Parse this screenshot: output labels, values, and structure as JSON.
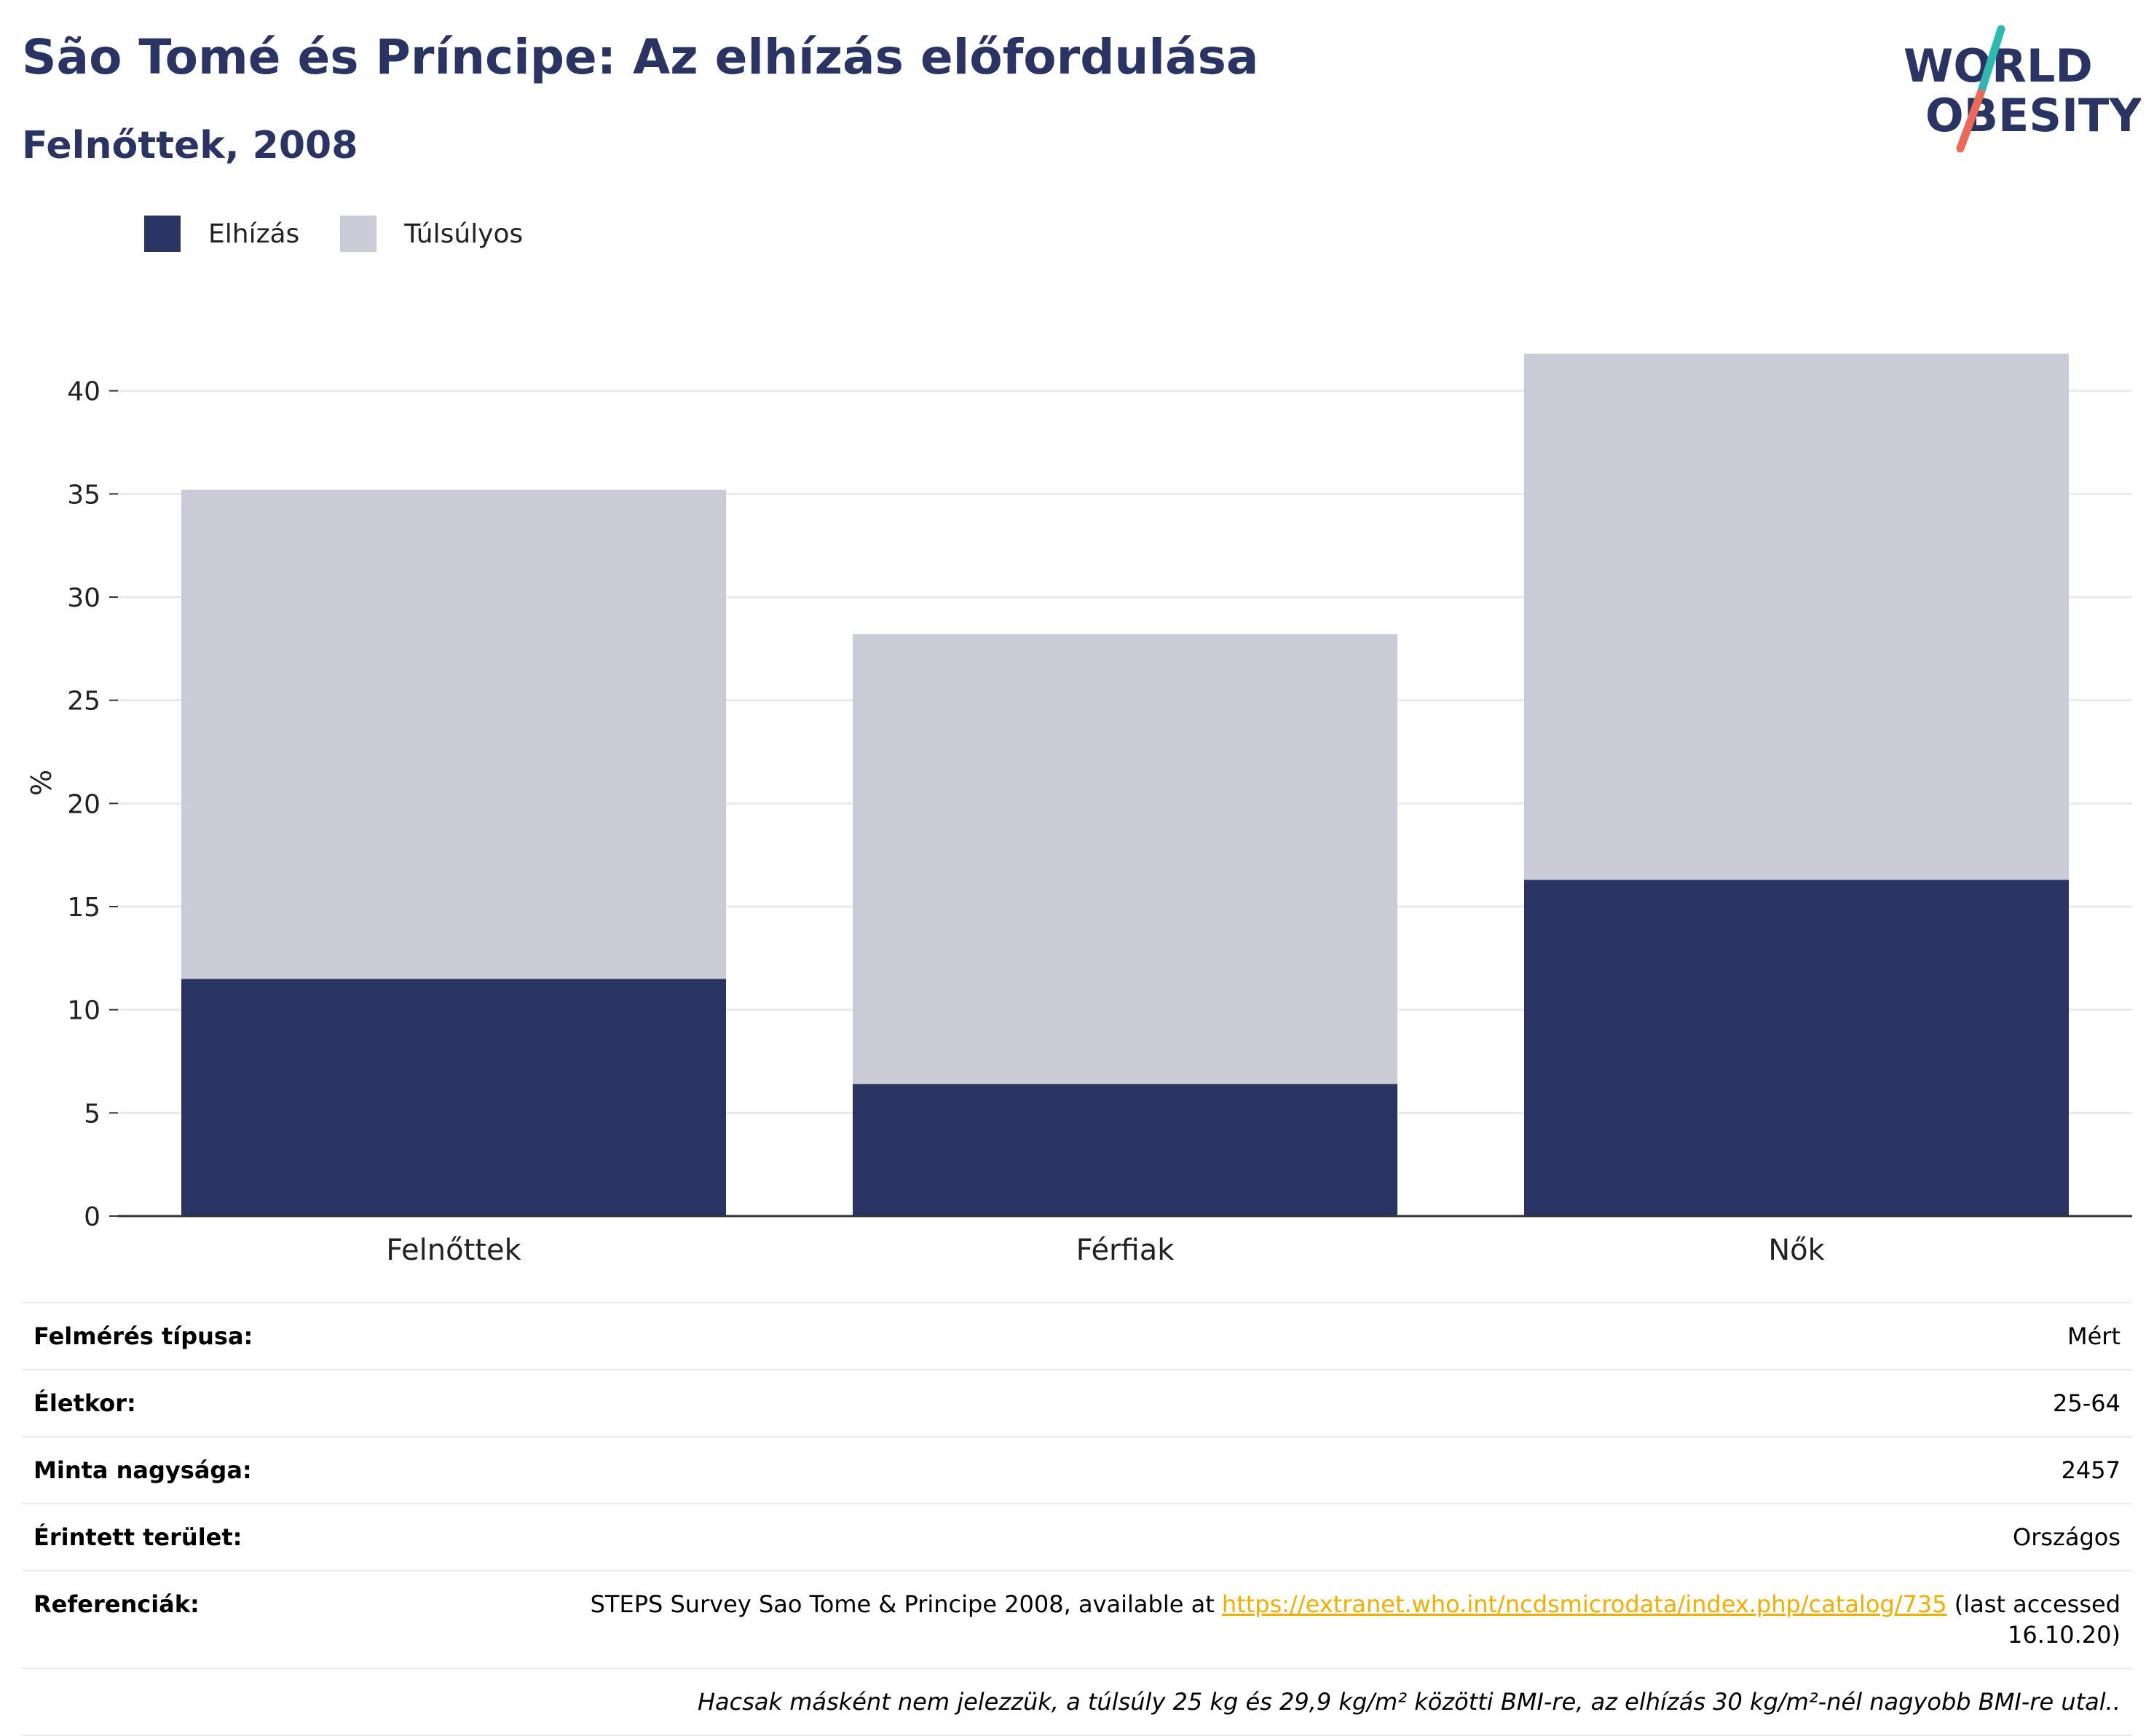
{
  "header": {
    "title": "São Tomé és Príncipe: Az elhízás előfordulása",
    "subtitle": "Felnőttek, 2008"
  },
  "logo": {
    "line1": "WORLD",
    "line2": "OBESITY",
    "icon": "world-obesity-slash-logo",
    "colors": {
      "text": "#293462",
      "slash_top": "#2fb7b0",
      "slash_bottom": "#e96a59"
    }
  },
  "chart_data": {
    "type": "bar",
    "stacked": true,
    "categories": [
      "Felnőttek",
      "Férfiak",
      "Nők"
    ],
    "series": [
      {
        "name": "Elhízás",
        "values": [
          11.5,
          6.4,
          16.3
        ],
        "color": "#293462"
      },
      {
        "name": "Túlsúlyos",
        "values": [
          23.7,
          21.8,
          25.5
        ],
        "color": "#c9cbd6"
      }
    ],
    "ylabel": "%",
    "ylim": [
      0,
      42
    ],
    "yticks": [
      0,
      5,
      10,
      15,
      20,
      25,
      30,
      35,
      40
    ],
    "grid": true,
    "legend": "top-left"
  },
  "meta": {
    "rows": [
      {
        "label": "Felmérés típusa:",
        "value": "Mért"
      },
      {
        "label": "Életkor:",
        "value": "25-64"
      },
      {
        "label": "Minta nagysága:",
        "value": "2457"
      },
      {
        "label": "Érintett terület:",
        "value": "Országos"
      }
    ],
    "reference": {
      "label": "Referenciák:",
      "before": "STEPS Survey Sao Tome & Principe 2008, available at ",
      "link": "https://extranet.who.int/ncdsmicrodata/index.php/catalog/735",
      "after": " (last accessed 16.10.20)"
    },
    "note": "Hacsak másként nem jelezzük, a túlsúly 25 kg és 29,9 kg/m² közötti BMI-re, az elhízás 30 kg/m²-nél nagyobb BMI-re utal.."
  }
}
